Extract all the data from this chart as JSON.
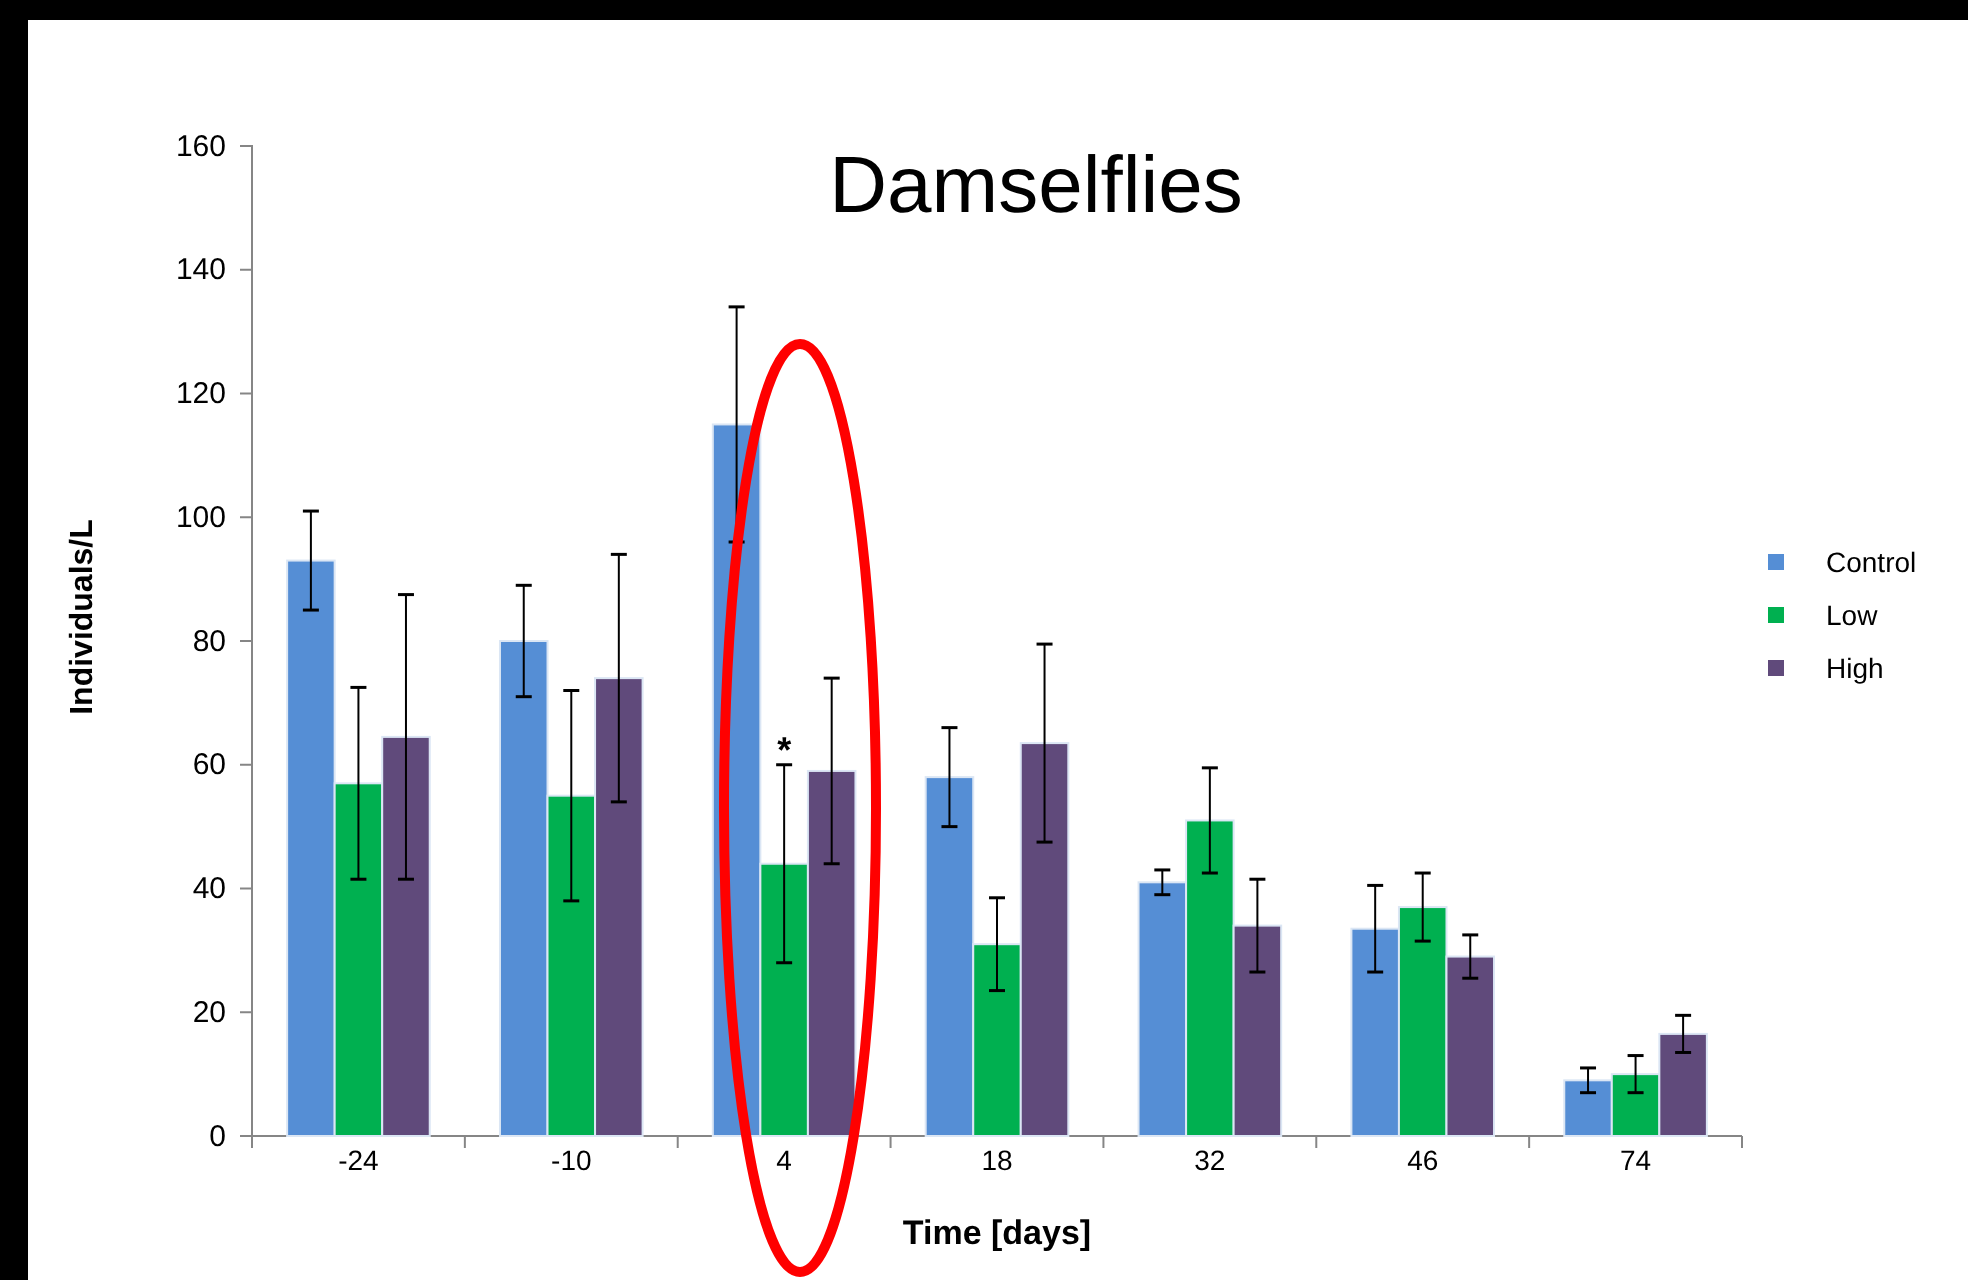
{
  "chart_data": {
    "type": "bar",
    "title": "Damselflies",
    "xlabel": "Time [days]",
    "ylabel": "Individuals/L",
    "categories": [
      "-24",
      "-10",
      "4",
      "18",
      "32",
      "46",
      "74"
    ],
    "series": [
      {
        "name": "Control",
        "color": "#558ed5",
        "values": [
          93,
          80,
          115,
          58,
          41,
          33.5,
          9
        ],
        "errors": [
          8,
          9,
          19,
          8,
          2,
          7,
          2
        ]
      },
      {
        "name": "Low",
        "color": "#00b050",
        "values": [
          57,
          55,
          44,
          31,
          51,
          37,
          10
        ],
        "errors": [
          15.5,
          17,
          16,
          7.5,
          8.5,
          5.5,
          3
        ]
      },
      {
        "name": "High",
        "color": "#604a7b",
        "values": [
          64.5,
          74,
          59,
          63.5,
          34,
          29,
          16.5
        ],
        "errors": [
          23,
          20,
          15,
          16,
          7.5,
          3.5,
          3
        ]
      }
    ],
    "ylim": [
      0,
      160
    ],
    "yticks": [
      0,
      20,
      40,
      60,
      80,
      100,
      120,
      140,
      160
    ],
    "grid": false,
    "legend": "right",
    "annotations": [
      {
        "text": "*",
        "x": "4",
        "y": 60
      }
    ]
  }
}
